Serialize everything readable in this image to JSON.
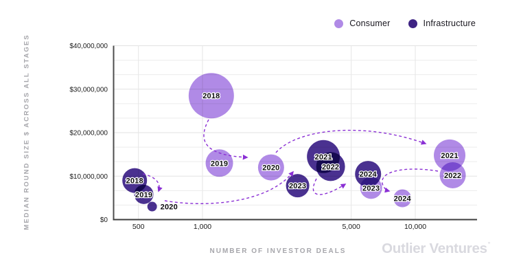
{
  "legend": [
    {
      "label": "Consumer",
      "color": "#b08ae6"
    },
    {
      "label": "Infrastructure",
      "color": "#3e2383"
    }
  ],
  "watermark": {
    "text": "Outlier Ventures",
    "mark": "°"
  },
  "chart_data": {
    "type": "scatter",
    "variant": "bubble",
    "xlabel": "NUMBER OF INVESTOR DEALS",
    "ylabel": "MEDIAN ROUND SIZE $ ACROSS ALL STAGES",
    "x_scale": "log",
    "xlim": [
      380,
      21000
    ],
    "ylim": [
      0,
      40000000
    ],
    "grid": true,
    "legend_position": "top-right",
    "x_ticks": [
      {
        "value": 500,
        "label": "500"
      },
      {
        "value": 1000,
        "label": "1,000"
      },
      {
        "value": 5000,
        "label": "5,000"
      },
      {
        "value": 10000,
        "label": "10,000"
      }
    ],
    "y_ticks": [
      {
        "value": 0,
        "label": "$0"
      },
      {
        "value": 10000000,
        "label": "$10,000,000"
      },
      {
        "value": 20000000,
        "label": "$20,000,000"
      },
      {
        "value": 30000000,
        "label": "$30,000,000"
      },
      {
        "value": 40000000,
        "label": "$40,000,000"
      }
    ],
    "series": [
      {
        "name": "Infrastructure",
        "color": "#4a3190",
        "points": [
          {
            "year": "2018",
            "deals": 480,
            "median_round_size": 9000000,
            "r": 18
          },
          {
            "year": "2019",
            "deals": 530,
            "median_round_size": 5800000,
            "r": 14
          },
          {
            "year": "2020",
            "deals": 580,
            "median_round_size": 3000000,
            "r": 7,
            "label_outside": true
          },
          {
            "year": "2021",
            "deals": 3700,
            "median_round_size": 14500000,
            "r": 24
          },
          {
            "year": "2022",
            "deals": 4000,
            "median_round_size": 12200000,
            "r": 21
          },
          {
            "year": "2023",
            "deals": 2800,
            "median_round_size": 7800000,
            "r": 17
          },
          {
            "year": "2024",
            "deals": 6000,
            "median_round_size": 10500000,
            "r": 19
          }
        ]
      },
      {
        "name": "Consumer",
        "color": "#b08ae6",
        "points": [
          {
            "year": "2018",
            "deals": 1100,
            "median_round_size": 28500000,
            "r": 33
          },
          {
            "year": "2019",
            "deals": 1200,
            "median_round_size": 13000000,
            "r": 20
          },
          {
            "year": "2020",
            "deals": 2100,
            "median_round_size": 12000000,
            "r": 19
          },
          {
            "year": "2021",
            "deals": 14500,
            "median_round_size": 14800000,
            "r": 23
          },
          {
            "year": "2022",
            "deals": 15000,
            "median_round_size": 10200000,
            "r": 19
          },
          {
            "year": "2023",
            "deals": 6200,
            "median_round_size": 7300000,
            "r": 16
          },
          {
            "year": "2024",
            "deals": 8700,
            "median_round_size": 4900000,
            "r": 13
          }
        ]
      }
    ],
    "arrows": [
      {
        "series": "Consumer",
        "from": "2018",
        "to": "2020"
      },
      {
        "series": "Infrastructure",
        "from": "2018",
        "to": "2020"
      },
      {
        "series": "Infrastructure",
        "from": "2020",
        "to": "2021"
      },
      {
        "series": "Infrastructure",
        "from": "2022",
        "to": "2024"
      },
      {
        "series": "Consumer",
        "from": "2020",
        "to": "2021"
      },
      {
        "series": "Consumer",
        "from": "2022",
        "to": "2024"
      }
    ]
  }
}
